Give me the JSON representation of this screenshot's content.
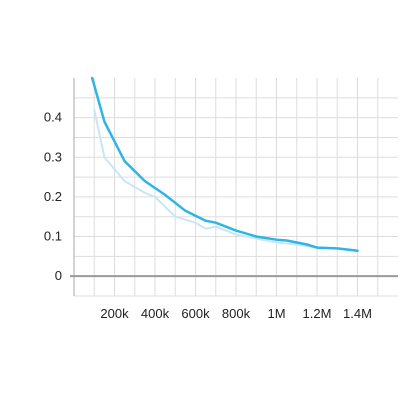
{
  "chart_data": {
    "type": "line",
    "title": "",
    "xlabel": "",
    "ylabel": "",
    "xlim": [
      0,
      1600000
    ],
    "ylim": [
      -0.05,
      0.5
    ],
    "grid": true,
    "x_ticks": [
      {
        "value": 200000,
        "label": "200k"
      },
      {
        "value": 400000,
        "label": "400k"
      },
      {
        "value": 600000,
        "label": "600k"
      },
      {
        "value": 800000,
        "label": "800k"
      },
      {
        "value": 1000000,
        "label": "1M"
      },
      {
        "value": 1200000,
        "label": "1.2M"
      },
      {
        "value": 1400000,
        "label": "1.4M"
      }
    ],
    "y_ticks": [
      {
        "value": 0,
        "label": "0"
      },
      {
        "value": 0.1,
        "label": "0.1"
      },
      {
        "value": 0.2,
        "label": "0.2"
      },
      {
        "value": 0.3,
        "label": "0.3"
      },
      {
        "value": 0.4,
        "label": "0.4"
      }
    ],
    "series": [
      {
        "color": "#c8e6f3",
        "x": [
          100000,
          150000,
          250000,
          350000,
          400000,
          500000,
          600000,
          650000,
          700000,
          800000,
          900000,
          1000000,
          1100000,
          1200000,
          1300000,
          1400000
        ],
        "y": [
          0.42,
          0.3,
          0.24,
          0.21,
          0.2,
          0.15,
          0.135,
          0.12,
          0.125,
          0.105,
          0.095,
          0.085,
          0.08,
          0.072,
          0.07,
          0.065
        ]
      },
      {
        "color": "#2eb5e5",
        "x": [
          90000,
          150000,
          250000,
          350000,
          450000,
          550000,
          650000,
          700000,
          800000,
          900000,
          1000000,
          1050000,
          1100000,
          1150000,
          1200000,
          1300000,
          1400000
        ],
        "y": [
          0.5,
          0.39,
          0.29,
          0.24,
          0.205,
          0.165,
          0.14,
          0.135,
          0.115,
          0.1,
          0.092,
          0.09,
          0.085,
          0.08,
          0.072,
          0.07,
          0.064
        ]
      }
    ]
  }
}
